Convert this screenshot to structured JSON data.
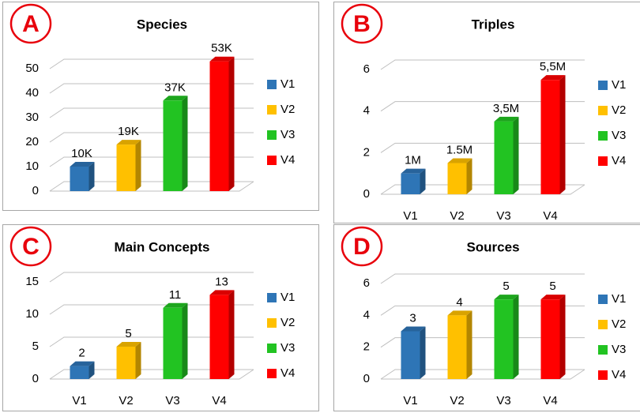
{
  "chart_data": [
    {
      "type": "bar3d",
      "letter": "A",
      "title": "Species",
      "categories": [
        "V1",
        "V2",
        "V3",
        "V4"
      ],
      "x_tick_labels": false,
      "values": [
        10,
        19,
        37,
        53
      ],
      "value_labels": [
        "10K",
        "19K",
        "37K",
        "53K"
      ],
      "colors": [
        "#2e75b6",
        "#ffc000",
        "#22c322",
        "#ff0000"
      ],
      "ylim": [
        0,
        50
      ],
      "yticks": [
        0,
        10,
        20,
        30,
        40,
        50
      ],
      "grid": true,
      "legend": "right"
    },
    {
      "type": "bar3d",
      "letter": "B",
      "title": "Triples",
      "categories": [
        "V1",
        "V2",
        "V3",
        "V4"
      ],
      "x_tick_labels": true,
      "values": [
        1,
        1.5,
        3.5,
        5.5
      ],
      "value_labels": [
        "1M",
        "1.5M",
        "3,5M",
        "5,5M"
      ],
      "colors": [
        "#2e75b6",
        "#ffc000",
        "#22c322",
        "#ff0000"
      ],
      "ylim": [
        0,
        6
      ],
      "yticks": [
        0,
        2,
        4,
        6
      ],
      "grid": true,
      "legend": "right"
    },
    {
      "type": "bar3d",
      "letter": "C",
      "title": "Main Concepts",
      "categories": [
        "V1",
        "V2",
        "V3",
        "V4"
      ],
      "x_tick_labels": true,
      "values": [
        2,
        5,
        11,
        13
      ],
      "colors": [
        "#2e75b6",
        "#ffc000",
        "#22c322",
        "#ff0000"
      ],
      "ylim": [
        0,
        15
      ],
      "yticks": [
        0,
        5,
        10,
        15
      ],
      "grid": true,
      "legend": "right"
    },
    {
      "type": "bar3d",
      "letter": "D",
      "title": "Sources",
      "categories": [
        "V1",
        "V2",
        "V3",
        "V4"
      ],
      "x_tick_labels": true,
      "values": [
        3,
        4,
        5,
        5
      ],
      "colors": [
        "#2e75b6",
        "#ffc000",
        "#22c322",
        "#ff0000"
      ],
      "ylim": [
        0,
        6
      ],
      "yticks": [
        0,
        2,
        4,
        6
      ],
      "grid": true,
      "legend": "right"
    }
  ]
}
